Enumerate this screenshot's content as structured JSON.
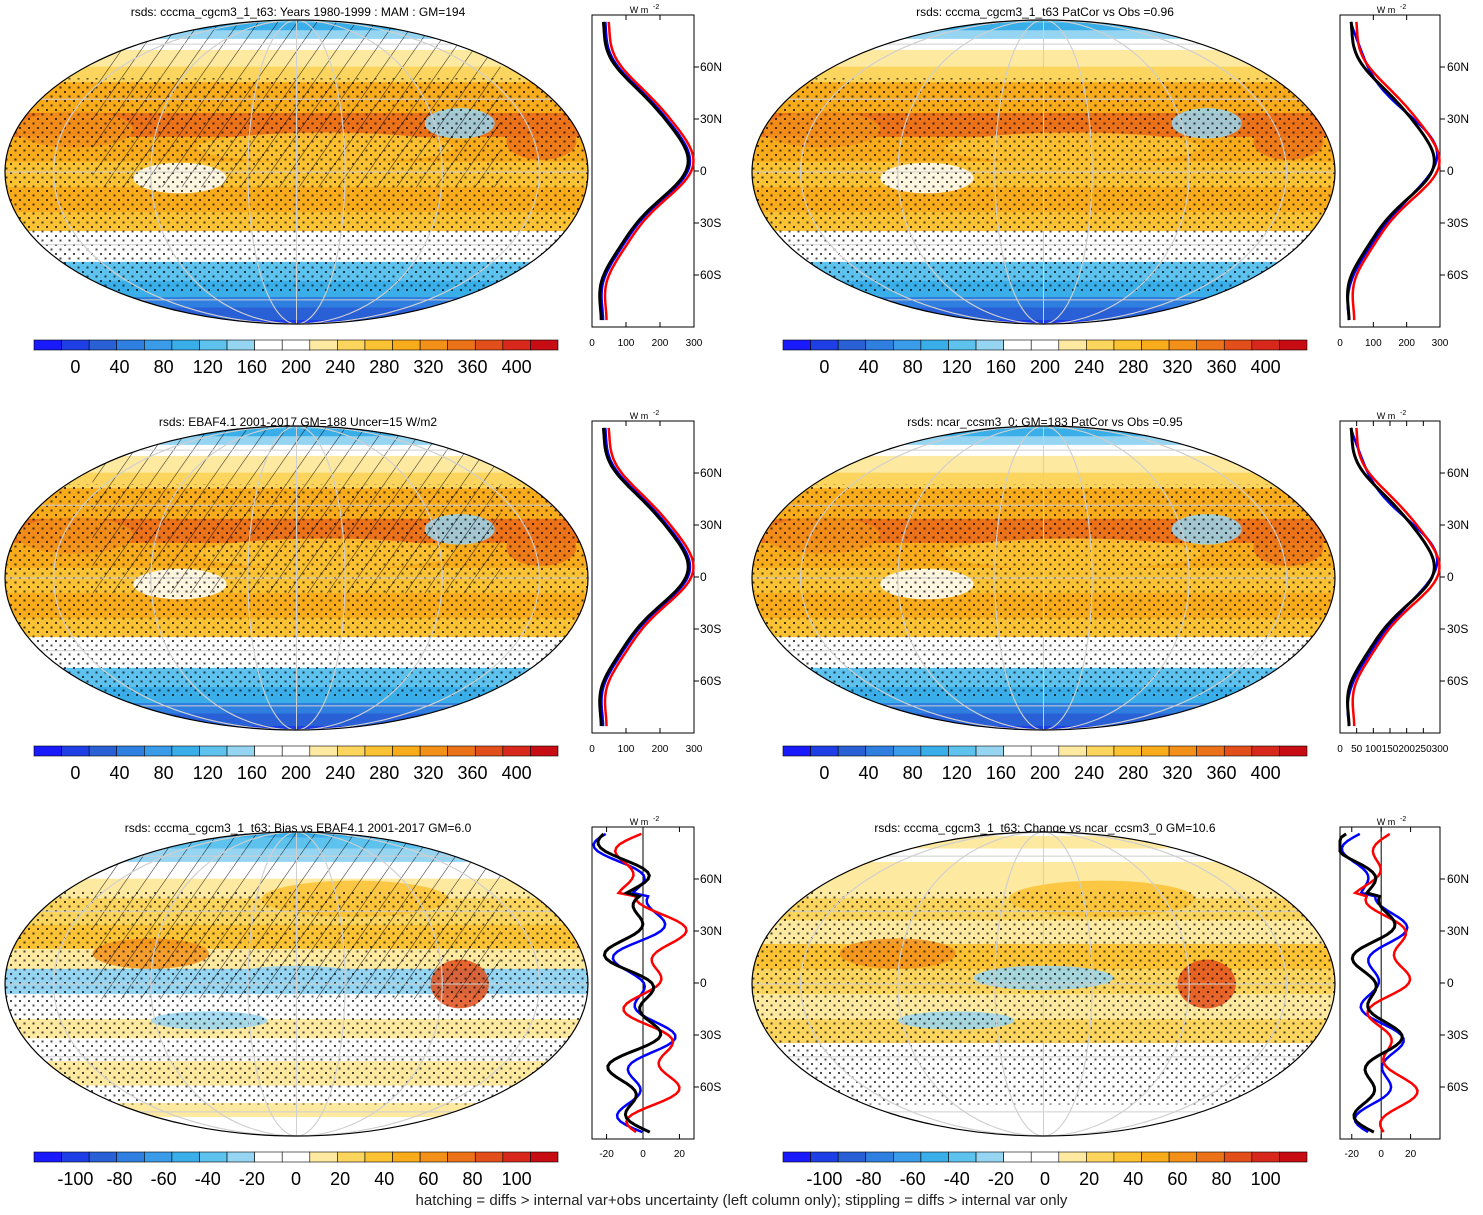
{
  "colors": {
    "scale": [
      "#1a1aff",
      "#1f3fe6",
      "#2960d6",
      "#2f7fe0",
      "#3a9be8",
      "#39aee8",
      "#5ec2ee",
      "#96d5f2",
      "#ffffff",
      "#ffffff",
      "#fde9a0",
      "#fbd55e",
      "#fbc233",
      "#f8ab1b",
      "#f2901a",
      "#eb7218",
      "#e24f1a",
      "#d8281c",
      "#c80c14"
    ],
    "zonal_model": "#ff0000",
    "zonal_obs": "#0000ff",
    "zonal_other": "#000000",
    "grid": "#cfcfcf"
  },
  "footer": "hatching = diffs > internal var+obs uncertainty (left column only); stippling = diffs > internal var only",
  "zonal_header": "W m",
  "zonal_header_sup": "-2",
  "lat_labels": [
    "60N",
    "30N",
    "0",
    "30S",
    "60S"
  ],
  "chart_data": [
    {
      "type": "heatmap",
      "panel": "mean",
      "title": "rsds: cccma_cgcm3_1_t63: Years 1980-1999 : MAM : GM=194",
      "colorbar_ticks": [
        "0",
        "40",
        "80",
        "120",
        "160",
        "200",
        "240",
        "280",
        "320",
        "360",
        "400"
      ],
      "zonal_ticks": [
        "0",
        "100",
        "200",
        "300"
      ],
      "zonal_xlim": [
        0,
        300
      ],
      "hatching": true,
      "stippling": true
    },
    {
      "type": "heatmap",
      "panel": "mean",
      "title": "rsds: cccma_cgcm3_1_t63 PatCor vs Obs =0.96",
      "colorbar_ticks": [
        "0",
        "40",
        "80",
        "120",
        "160",
        "200",
        "240",
        "280",
        "320",
        "360",
        "400"
      ],
      "zonal_ticks": [
        "0",
        "100",
        "200",
        "300"
      ],
      "zonal_xlim": [
        0,
        300
      ],
      "hatching": false,
      "stippling": true
    },
    {
      "type": "heatmap",
      "panel": "mean",
      "title": "rsds: EBAF4.1 2001-2017 GM=188 Uncer=15 W/m2",
      "colorbar_ticks": [
        "0",
        "40",
        "80",
        "120",
        "160",
        "200",
        "240",
        "280",
        "320",
        "360",
        "400"
      ],
      "zonal_ticks": [
        "0",
        "100",
        "200",
        "300"
      ],
      "zonal_xlim": [
        0,
        300
      ],
      "hatching": true,
      "stippling": true
    },
    {
      "type": "heatmap",
      "panel": "mean",
      "title": "rsds: ncar_ccsm3_0: GM=183 PatCor vs Obs =0.95",
      "colorbar_ticks": [
        "0",
        "40",
        "80",
        "120",
        "160",
        "200",
        "240",
        "280",
        "320",
        "360",
        "400"
      ],
      "zonal_ticks": [
        "0",
        "50",
        "100",
        "150",
        "200",
        "250",
        "300"
      ],
      "zonal_xlim": [
        0,
        300
      ],
      "hatching": false,
      "stippling": true
    },
    {
      "type": "heatmap",
      "panel": "diff",
      "title": "rsds: cccma_cgcm3_1_t63: Bias vs EBAF4.1 2001-2017 GM=6.0",
      "colorbar_ticks": [
        "-100",
        "-80",
        "-60",
        "-40",
        "-20",
        "0",
        "20",
        "40",
        "60",
        "80",
        "100"
      ],
      "zonal_ticks": [
        "-20",
        "0",
        "20"
      ],
      "zonal_xlim": [
        -28,
        28
      ],
      "hatching": true,
      "stippling": true
    },
    {
      "type": "heatmap",
      "panel": "diff",
      "title": "rsds: cccma_cgcm3_1_t63: Change vs ncar_ccsm3_0 GM=10.6",
      "colorbar_ticks": [
        "-100",
        "-80",
        "-60",
        "-40",
        "-20",
        "0",
        "20",
        "40",
        "60",
        "80",
        "100"
      ],
      "zonal_ticks": [
        "-20",
        "0",
        "20"
      ],
      "zonal_xlim": [
        -28,
        40
      ],
      "hatching": false,
      "stippling": true
    }
  ]
}
